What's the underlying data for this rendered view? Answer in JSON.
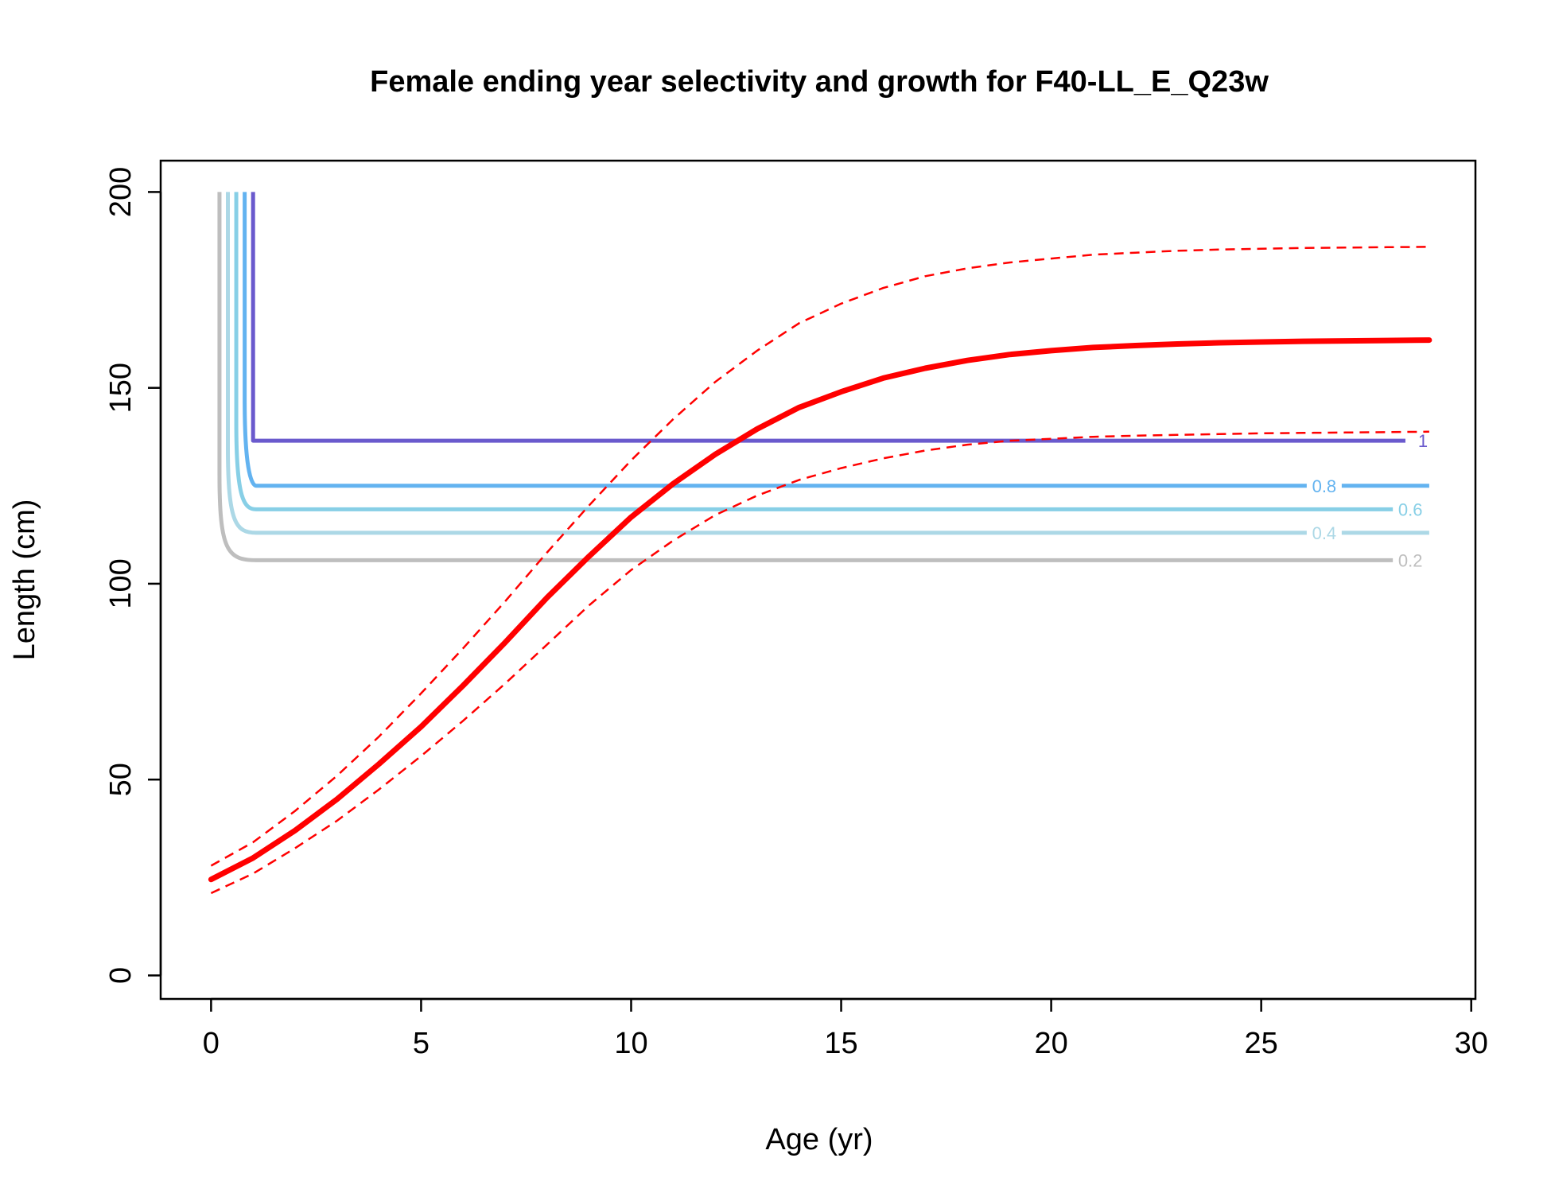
{
  "chart_data": {
    "type": "line",
    "title": "Female ending year selectivity and growth for F40-LL_E_Q23w",
    "xlabel": "Age (yr)",
    "ylabel": "Length (cm)",
    "xlim": [
      -1.2,
      30.1
    ],
    "ylim": [
      -6,
      208
    ],
    "x_ticks": [
      0,
      5,
      10,
      15,
      20,
      25,
      30
    ],
    "y_ticks": [
      0,
      50,
      100,
      150,
      200
    ],
    "grid": false,
    "legend": "none",
    "growth": {
      "color": "#ff0000",
      "ages": [
        0,
        1,
        2,
        3,
        4,
        5,
        6,
        7,
        8,
        9,
        10,
        11,
        12,
        13,
        14,
        15,
        16,
        17,
        18,
        19,
        20,
        21,
        22,
        23,
        24,
        25,
        26,
        27,
        28,
        29
      ],
      "mean": [
        24.5,
        30,
        37,
        45,
        54,
        63.5,
        74,
        85,
        96.5,
        107,
        117,
        125.5,
        133,
        139.5,
        145,
        149,
        152.5,
        155,
        157,
        158.5,
        159.5,
        160.3,
        160.8,
        161.2,
        161.5,
        161.7,
        161.9,
        162,
        162.1,
        162.2
      ],
      "upper": [
        28,
        34,
        42,
        51,
        61,
        72,
        83.5,
        95.5,
        108,
        120,
        131.5,
        142,
        151.5,
        159.5,
        166.5,
        171.5,
        175.5,
        178.5,
        180.5,
        182,
        183,
        184,
        184.5,
        185,
        185.3,
        185.5,
        185.7,
        185.8,
        185.9,
        186
      ],
      "lower": [
        21,
        26,
        32.5,
        39.5,
        47.5,
        56,
        65,
        74.5,
        84.5,
        94.5,
        103.5,
        111,
        117.5,
        122.5,
        126.5,
        129.5,
        132,
        134,
        135.5,
        136.5,
        137,
        137.5,
        137.8,
        138,
        138.2,
        138.4,
        138.5,
        138.6,
        138.7,
        138.8
      ]
    },
    "selectivity_contours": [
      {
        "label": "1",
        "color": "#6a5acd",
        "x_vertical": 1.0,
        "y_level": 136.5,
        "x_end": 28.5,
        "label_x": 28.85
      },
      {
        "label": "0.8",
        "color": "#63b3f0",
        "x_vertical": 0.8,
        "y_level": 125,
        "x_end": 29,
        "label_x": 26.5
      },
      {
        "label": "0.6",
        "color": "#87cfe6",
        "x_vertical": 0.6,
        "y_level": 119,
        "x_end": 28.2,
        "label_x": 28.55
      },
      {
        "label": "0.4",
        "color": "#acd8e6",
        "x_vertical": 0.4,
        "y_level": 113,
        "x_end": 29,
        "label_x": 26.5
      },
      {
        "label": "0.2",
        "color": "#bebebe",
        "x_vertical": 0.2,
        "y_level": 106,
        "x_end": 28.2,
        "label_x": 28.55
      }
    ]
  }
}
